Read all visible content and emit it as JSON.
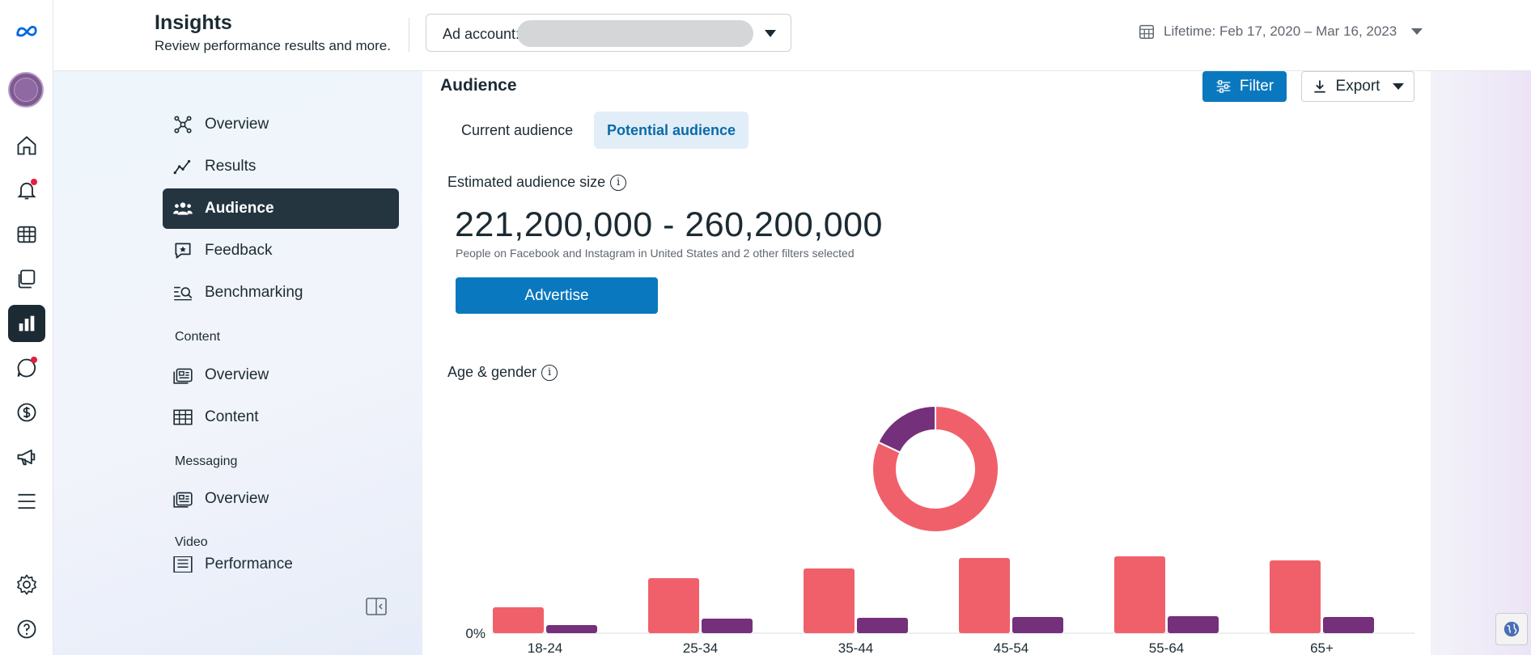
{
  "header": {
    "title": "Insights",
    "subtitle": "Review performance results and more.",
    "ad_account_label": "Ad account:",
    "date_range": "Lifetime: Feb 17, 2020 – Mar 16, 2023"
  },
  "rail": {
    "icons": [
      "meta-logo-icon",
      "avatar",
      "home-icon",
      "notifications-icon",
      "table-icon",
      "pages-icon",
      "insights-icon",
      "messages-icon",
      "dollar-icon",
      "megaphone-icon",
      "menu-icon",
      "settings-icon",
      "help-icon"
    ],
    "active": "insights-icon"
  },
  "sidebar": {
    "items": [
      {
        "label": "Overview",
        "icon": "overview-icon"
      },
      {
        "label": "Results",
        "icon": "results-icon"
      },
      {
        "label": "Audience",
        "icon": "audience-icon",
        "active": true
      },
      {
        "label": "Feedback",
        "icon": "feedback-icon"
      },
      {
        "label": "Benchmarking",
        "icon": "benchmarking-icon"
      }
    ],
    "sections": [
      {
        "title": "Content",
        "items": [
          {
            "label": "Overview",
            "icon": "content-overview-icon"
          },
          {
            "label": "Content",
            "icon": "content-table-icon"
          }
        ]
      },
      {
        "title": "Messaging",
        "items": [
          {
            "label": "Overview",
            "icon": "messaging-overview-icon"
          }
        ]
      },
      {
        "title": "Video",
        "items": [
          {
            "label": "Performance",
            "icon": "performance-icon"
          }
        ]
      }
    ]
  },
  "main": {
    "title": "Audience",
    "filter_label": "Filter",
    "export_label": "Export",
    "tabs": [
      {
        "label": "Current audience"
      },
      {
        "label": "Potential audience",
        "active": true
      }
    ],
    "estimate_label": "Estimated audience size",
    "estimate_value": "221,200,000 - 260,200,000",
    "estimate_note": "People on Facebook and Instagram in United States and 2 other filters selected",
    "advertise_label": "Advertise",
    "age_gender_label": "Age & gender"
  },
  "colors": {
    "accent": "#0a78be",
    "women": "#f0606b",
    "men": "#74307a",
    "nav_active": "#243540"
  },
  "chart_data": [
    {
      "type": "pie",
      "values": [
        82,
        18
      ],
      "colors": [
        "#f0606b",
        "#74307a"
      ]
    },
    {
      "type": "bar",
      "categories": [
        "18-24",
        "25-34",
        "35-44",
        "45-54",
        "55-64",
        "65+"
      ],
      "series": [
        {
          "values": [
            3.2,
            6.8,
            8.0,
            9.3,
            9.5,
            9.0
          ],
          "color": "#f0606b"
        },
        {
          "values": [
            1.0,
            1.8,
            1.9,
            2.0,
            2.1,
            2.0
          ],
          "color": "#74307a"
        }
      ],
      "ytick": "0%",
      "ylim": [
        0,
        10
      ]
    }
  ]
}
